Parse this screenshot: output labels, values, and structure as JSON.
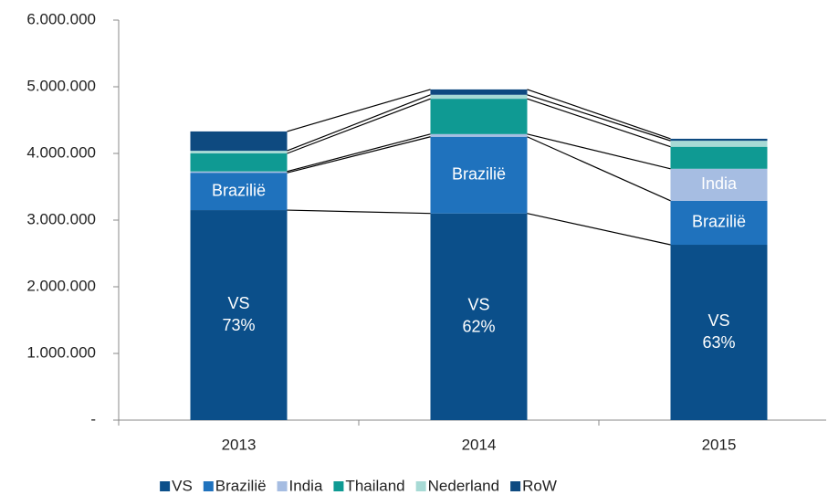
{
  "chart_data": {
    "type": "stacked_bar",
    "categories": [
      "2013",
      "2014",
      "2015"
    ],
    "series": [
      {
        "name": "VS",
        "color": "#0b4f8a",
        "values": [
          3150000,
          3100000,
          2630000
        ],
        "labeled": [
          true,
          true,
          true
        ],
        "shares": [
          "73%",
          "62%",
          "63%"
        ]
      },
      {
        "name": "Brazilië",
        "color": "#1f72bd",
        "values": [
          560000,
          1150000,
          660000
        ],
        "labeled": [
          true,
          true,
          true
        ]
      },
      {
        "name": "India",
        "color": "#a6bde2",
        "values": [
          20000,
          40000,
          480000
        ],
        "labeled": [
          false,
          false,
          true
        ]
      },
      {
        "name": "Thailand",
        "color": "#0f9a93",
        "values": [
          270000,
          530000,
          330000
        ],
        "labeled": [
          false,
          false,
          false
        ]
      },
      {
        "name": "Nederland",
        "color": "#a7dad5",
        "values": [
          40000,
          60000,
          90000
        ],
        "labeled": [
          false,
          false,
          false
        ]
      },
      {
        "name": "RoW",
        "color": "#0e4a80",
        "values": [
          290000,
          80000,
          30000
        ],
        "labeled": [
          false,
          false,
          false
        ]
      }
    ],
    "ylim": [
      0,
      6000000
    ],
    "yticks": [
      {
        "value": 0,
        "label": "-"
      },
      {
        "value": 1000000,
        "label": "1.000.000"
      },
      {
        "value": 2000000,
        "label": "2.000.000"
      },
      {
        "value": 3000000,
        "label": "3.000.000"
      },
      {
        "value": 4000000,
        "label": "4.000.000"
      },
      {
        "value": 5000000,
        "label": "5.000.000"
      },
      {
        "value": 6000000,
        "label": "6.000.000"
      }
    ],
    "connectors": true
  }
}
